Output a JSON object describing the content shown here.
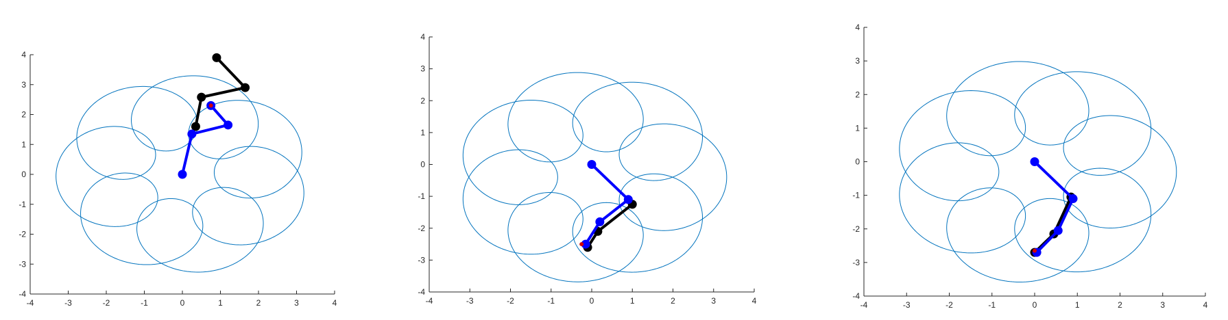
{
  "colors": {
    "trajectory": "#0072BD",
    "arm_target": "#000000",
    "arm_tracker": "#0000FF",
    "end_marker": "#D00000",
    "axis": "#262626"
  },
  "chart_data": [
    {
      "type": "line",
      "title": "",
      "xlabel": "",
      "ylabel": "",
      "xlim": [
        -4,
        4
      ],
      "ylim": [
        -4,
        4
      ],
      "xticks": [
        "-4",
        "-3",
        "-2",
        "-1",
        "0",
        "1",
        "2",
        "3",
        "4"
      ],
      "yticks": [
        "-4",
        "-3",
        "-2",
        "-1",
        "0",
        "1",
        "2",
        "3",
        "4"
      ],
      "grid": false,
      "trajectory": {
        "curve": "epicycloid-loops",
        "loops": 7,
        "outer_radius": 3.0,
        "loop_radius": 0.92,
        "rotation_deg": 28,
        "center": [
          0,
          0
        ]
      },
      "series": [
        {
          "role": "target-arm",
          "points": [
            [
              0.9,
              3.9
            ],
            [
              1.65,
              2.9
            ],
            [
              0.5,
              2.58
            ],
            [
              0.35,
              1.6
            ]
          ]
        },
        {
          "role": "tracking-arm",
          "points": [
            [
              0,
              0
            ],
            [
              0.25,
              1.35
            ],
            [
              1.2,
              1.65
            ],
            [
              0.75,
              2.3
            ]
          ]
        }
      ],
      "end_point": [
        0.75,
        2.3
      ]
    },
    {
      "type": "line",
      "title": "",
      "xlabel": "",
      "ylabel": "",
      "xlim": [
        -4,
        4
      ],
      "ylim": [
        -4,
        4
      ],
      "xticks": [
        "-4",
        "-3",
        "-2",
        "-1",
        "0",
        "1",
        "2",
        "3",
        "4"
      ],
      "yticks": [
        "-4",
        "-3",
        "-2",
        "-1",
        "0",
        "1",
        "2",
        "3",
        "4"
      ],
      "grid": false,
      "trajectory": {
        "curve": "epicycloid-loops",
        "loops": 7,
        "outer_radius": 3.0,
        "loop_radius": 0.92,
        "rotation_deg": 0,
        "center": [
          0,
          -0.4
        ]
      },
      "series": [
        {
          "role": "target-arm",
          "points": [
            [
              1.0,
              -1.25
            ],
            [
              0.15,
              -2.1
            ],
            [
              -0.1,
              -2.6
            ]
          ]
        },
        {
          "role": "tracking-arm",
          "points": [
            [
              0,
              0
            ],
            [
              0.9,
              -1.1
            ],
            [
              0.2,
              -1.8
            ],
            [
              -0.15,
              -2.5
            ]
          ]
        }
      ],
      "end_point": [
        -0.25,
        -2.5
      ]
    },
    {
      "type": "line",
      "title": "",
      "xlabel": "",
      "ylabel": "",
      "xlim": [
        -4,
        4
      ],
      "ylim": [
        -4,
        4
      ],
      "xticks": [
        "-4",
        "-3",
        "-2",
        "-1",
        "0",
        "1",
        "2",
        "3",
        "4"
      ],
      "yticks": [
        "-4",
        "-3",
        "-2",
        "-1",
        "0",
        "1",
        "2",
        "3",
        "4"
      ],
      "grid": false,
      "trajectory": {
        "curve": "epicycloid-loops",
        "loops": 7,
        "outer_radius": 3.0,
        "loop_radius": 0.92,
        "rotation_deg": 0,
        "center": [
          0,
          -0.3
        ]
      },
      "series": [
        {
          "role": "target-arm",
          "points": [
            [
              0.85,
              -1.05
            ],
            [
              0.45,
              -2.15
            ],
            [
              0.0,
              -2.7
            ]
          ]
        },
        {
          "role": "tracking-arm",
          "points": [
            [
              0,
              0
            ],
            [
              0.9,
              -1.1
            ],
            [
              0.55,
              -2.05
            ],
            [
              0.05,
              -2.7
            ]
          ]
        }
      ],
      "end_point": [
        0.0,
        -2.65
      ]
    }
  ]
}
